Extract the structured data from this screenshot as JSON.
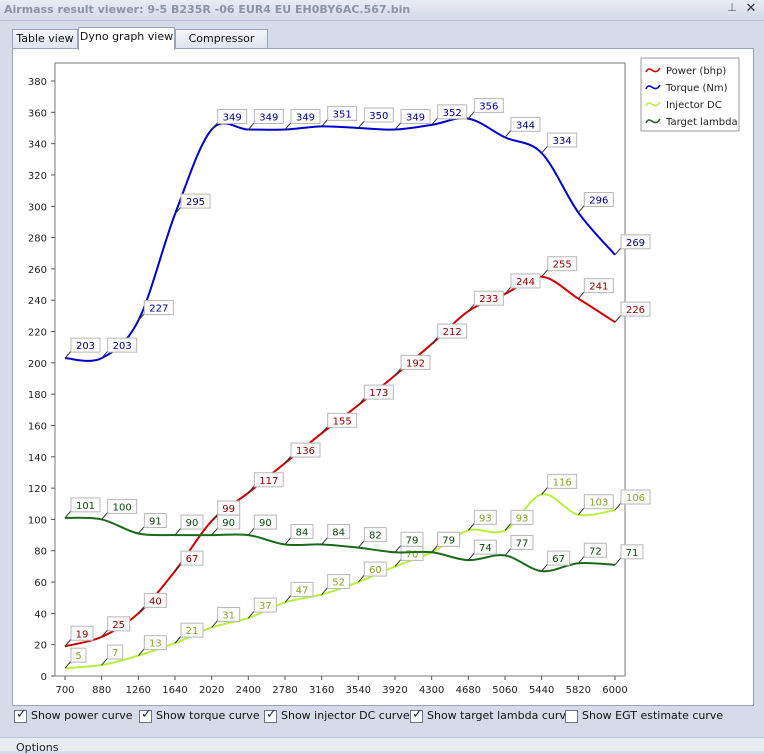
{
  "window": {
    "title": "Airmass result viewer: 9-5 B235R -06 EUR4 EU EH0BY6AC.567.bin",
    "pin_icon": "pin-icon",
    "close_icon": "close-icon",
    "close_glyph": "✕",
    "pin_glyph": "⊥"
  },
  "tabs": [
    {
      "label": "Table view",
      "active": false
    },
    {
      "label": "Dyno graph view",
      "active": true
    },
    {
      "label": "Compressor map",
      "active": false
    }
  ],
  "checkboxes": [
    {
      "label": "Show power curve",
      "checked": true
    },
    {
      "label": "Show torque curve",
      "checked": true
    },
    {
      "label": "Show injector DC curve",
      "checked": true
    },
    {
      "label": "Show target lambda curve",
      "checked": true
    },
    {
      "label": "Show EGT estimate curve",
      "checked": false
    }
  ],
  "options_label": "Options",
  "chart_data": {
    "type": "line",
    "x": [
      700,
      880,
      1260,
      1640,
      2020,
      2400,
      2780,
      3160,
      3540,
      3920,
      4300,
      4680,
      5060,
      5440,
      5820,
      6000
    ],
    "x_ticks": [
      700,
      880,
      1260,
      1640,
      2020,
      2400,
      2780,
      3160,
      3540,
      3920,
      4300,
      4680,
      5060,
      5440,
      5820,
      6000
    ],
    "y_ticks": [
      0,
      20,
      40,
      60,
      80,
      100,
      120,
      140,
      160,
      180,
      200,
      220,
      240,
      260,
      280,
      300,
      320,
      340,
      360,
      380
    ],
    "ylim": [
      0,
      380
    ],
    "grid": false,
    "legend_position": "top-right",
    "series": [
      {
        "name": "Power (bhp)",
        "color": "#cc0000",
        "label_color": "#8b0000",
        "values": [
          19,
          25,
          40,
          67,
          99,
          117,
          136,
          155,
          173,
          192,
          212,
          233,
          244,
          255,
          241,
          226
        ]
      },
      {
        "name": "Torque (Nm)",
        "color": "#0000cc",
        "label_color": "#00008b",
        "values": [
          203,
          203,
          227,
          295,
          349,
          349,
          349,
          351,
          350,
          349,
          352,
          356,
          344,
          334,
          296,
          269
        ]
      },
      {
        "name": "Injector DC",
        "color": "#b8f040",
        "label_color": "#8aa82c",
        "values": [
          5,
          7,
          13,
          21,
          31,
          37,
          47,
          52,
          60,
          70,
          79,
          93,
          93,
          116,
          103,
          106
        ]
      },
      {
        "name": "Target lambda",
        "color": "#1a6a1a",
        "label_color": "#0f4a0f",
        "values": [
          101,
          100,
          91,
          90,
          90,
          90,
          84,
          84,
          82,
          79,
          79,
          74,
          77,
          67,
          72,
          71
        ]
      }
    ]
  }
}
